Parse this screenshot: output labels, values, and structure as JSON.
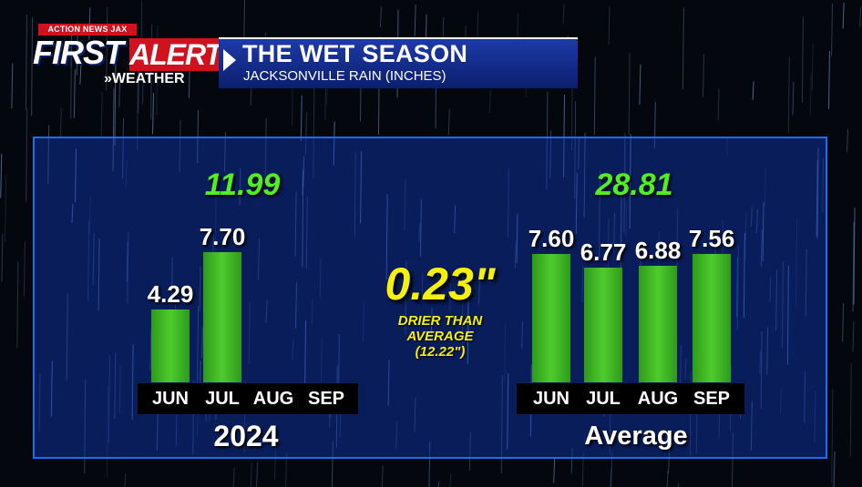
{
  "header": {
    "network": "ACTION NEWS JAX",
    "brand_first": "FIRST",
    "brand_alert": "ALERT",
    "brand_weather": "»WEATHER",
    "title": "THE WET SEASON",
    "subtitle": "JACKSONVILLE RAIN (INCHES)"
  },
  "comparison": {
    "difference": "0.23\"",
    "note_line1": "DRIER THAN",
    "note_line2": "AVERAGE",
    "note_line3": "(12.22\")"
  },
  "chart_data": [
    {
      "type": "bar",
      "label": "2024",
      "total": "11.99",
      "categories": [
        "JUN",
        "JUL",
        "AUG",
        "SEP"
      ],
      "values": [
        4.29,
        7.7,
        null,
        null
      ],
      "value_labels": [
        "4.29",
        "7.70",
        "",
        ""
      ]
    },
    {
      "type": "bar",
      "label": "Average",
      "total": "28.81",
      "categories": [
        "JUN",
        "JUL",
        "AUG",
        "SEP"
      ],
      "values": [
        7.6,
        6.77,
        6.88,
        7.56
      ],
      "value_labels": [
        "7.60",
        "6.77",
        "6.88",
        "7.56"
      ]
    }
  ],
  "colors": {
    "bar": "#3fb824",
    "total": "#4ff01e",
    "difference": "#f6f00d",
    "panel_border": "#1d6df0",
    "alert_red": "#d1121d"
  }
}
